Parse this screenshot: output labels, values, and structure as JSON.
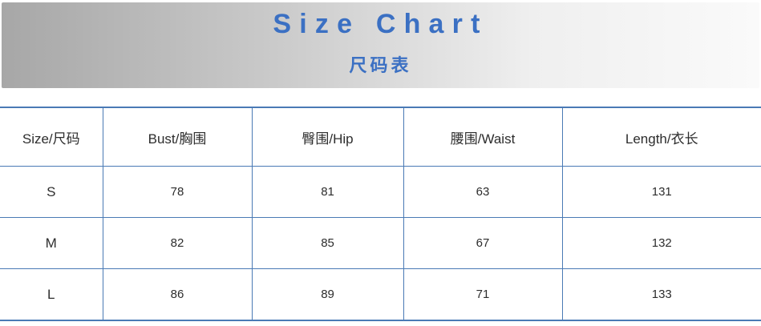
{
  "banner": {
    "title": "Size Chart",
    "subtitle": "尺码表"
  },
  "colors": {
    "title_blue": "#3b70c3",
    "table_border_blue": "#4a7ab5",
    "banner_gray_start": "#a7a7a7",
    "banner_gray_end": "#fafafa"
  },
  "chart_data": {
    "type": "table",
    "title": "Size Chart",
    "subtitle": "尺码表",
    "columns": [
      "Size/尺码",
      "Bust/胸围",
      "臀围/Hip",
      "腰围/Waist",
      "Length/衣长"
    ],
    "rows": [
      [
        "S",
        "78",
        "81",
        "63",
        "131"
      ],
      [
        "M",
        "82",
        "85",
        "67",
        "132"
      ],
      [
        "L",
        "86",
        "89",
        "71",
        "133"
      ]
    ]
  }
}
